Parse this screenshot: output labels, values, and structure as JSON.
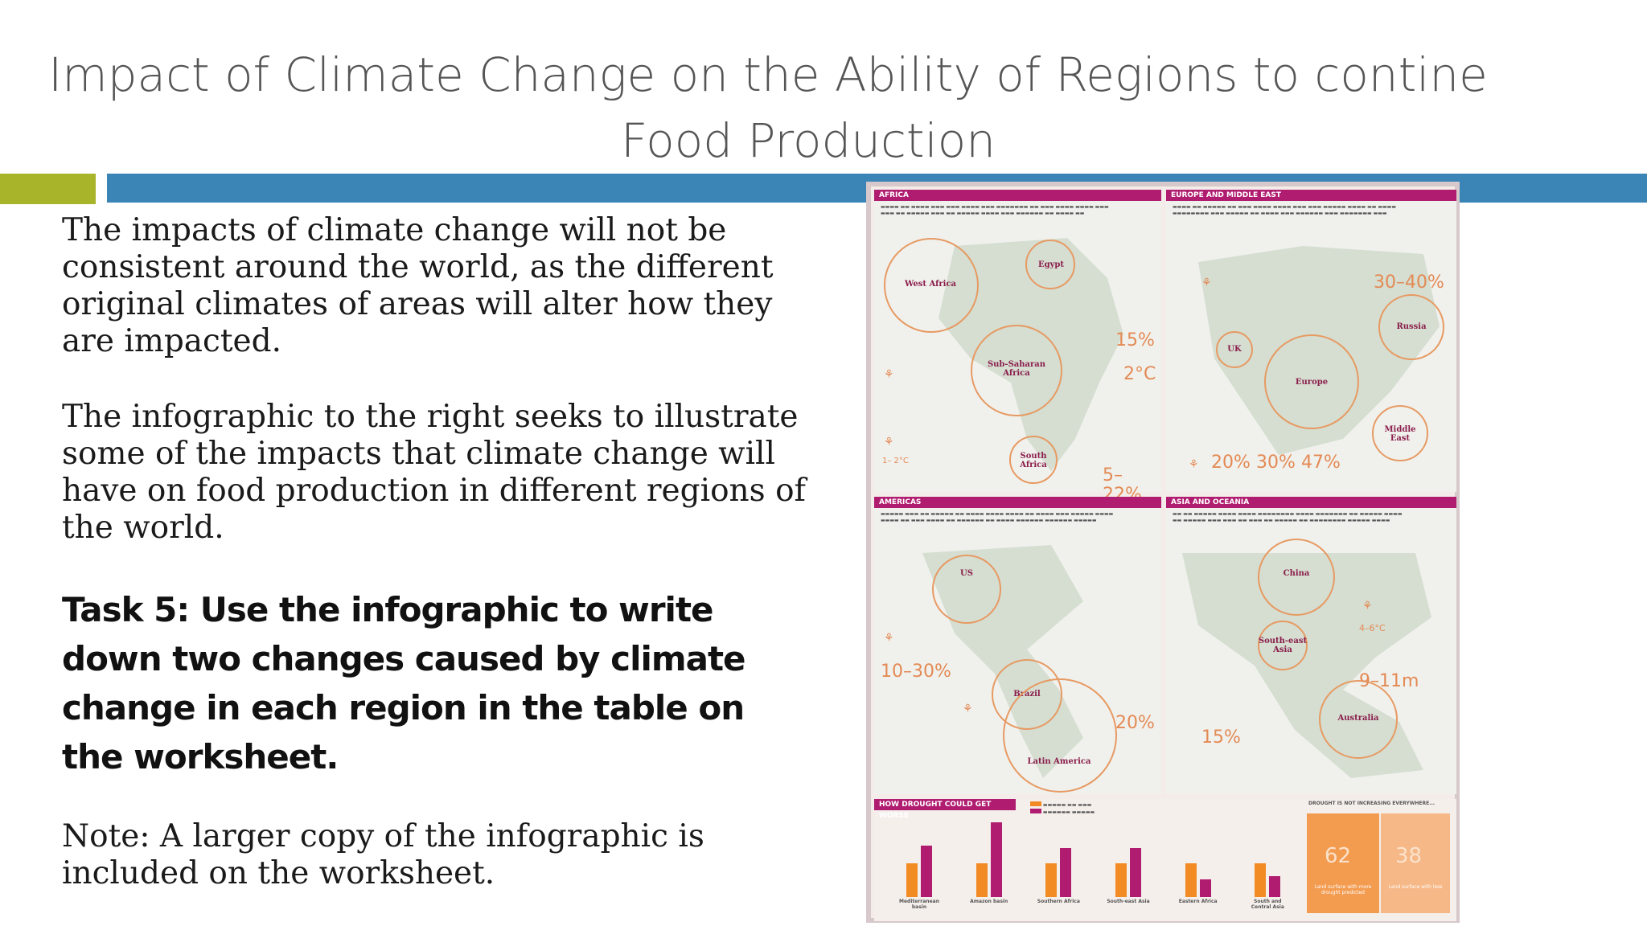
{
  "title": {
    "line1": "Impact of Climate Change on the Ability of Regions to contine",
    "line2": "Food Production"
  },
  "paragraphs": [
    "The impacts of climate change will not be consistent around the world, as the different original climates of areas will alter how they are impacted.",
    "The infographic to the right seeks to illustrate some of the impacts that climate change will have on food production in different regions of the world."
  ],
  "task": "Task 5: Use the infographic to write down two changes caused by climate change in each region in the table on the worksheet.",
  "note": "Note: A larger copy of the infographic is included on the worksheet.",
  "colors": {
    "accent_green": "#a8b52a",
    "accent_blue": "#3a85b5",
    "infographic_magenta": "#b01d70",
    "infographic_orange": "#e48a55"
  },
  "infographic": {
    "africa": {
      "header": "AFRICA",
      "regions": [
        "West Africa",
        "Egypt",
        "Sub-Saharan Africa",
        "South Africa"
      ],
      "stats": [
        "15%",
        "2°C",
        "5–22%",
        "1– 2°C"
      ]
    },
    "europe": {
      "header": "EUROPE AND MIDDLE EAST",
      "regions": [
        "UK",
        "Europe",
        "Russia",
        "Middle East"
      ],
      "stats": [
        "30–40%",
        "20%",
        "30%",
        "47%"
      ]
    },
    "americas": {
      "header": "AMERICAS",
      "regions": [
        "US",
        "Brazil",
        "Latin America"
      ],
      "stats": [
        "10–30%",
        "20%"
      ]
    },
    "asia": {
      "header": "ASIA AND OCEANIA",
      "regions": [
        "China",
        "South-east Asia",
        "Australia"
      ],
      "stats": [
        "4–6°C",
        "9–11m",
        "15%"
      ]
    },
    "drought": {
      "header": "HOW DROUGHT COULD GET WORSE",
      "side_header": "DROUGHT IS NOT INCREASING EVERYWHERE...",
      "categories": [
        "Mediterranean basin",
        "Amazon basin",
        "Southern Africa",
        "South-east Asia",
        "Eastern Africa",
        "South and Central Asia"
      ],
      "values_orange": [
        13,
        13,
        13,
        13,
        13,
        13
      ],
      "values_magenta": [
        20,
        29,
        19,
        19,
        7,
        8
      ],
      "side_values": [
        "62",
        "38"
      ],
      "side_labels": [
        "Land surface with more drought predicted",
        "Land surface with less"
      ]
    }
  }
}
